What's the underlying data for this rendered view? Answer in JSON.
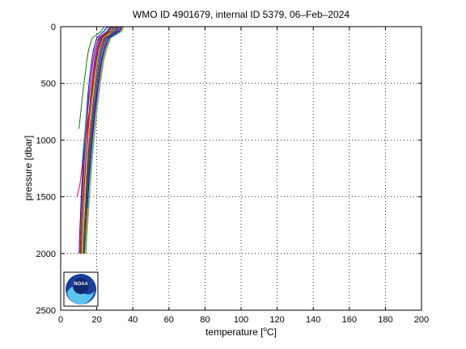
{
  "chart_data": {
    "type": "line",
    "title": "WMO ID 4901679, internal ID 5379, 06–Feb–2024",
    "xlabel_prefix": "temperature [",
    "xlabel_unit_sup": "o",
    "xlabel_suffix": "C]",
    "ylabel": "pressure [dbar]",
    "xlim": [
      0,
      200
    ],
    "ylim": [
      0,
      2500
    ],
    "y_reversed": true,
    "xticks": [
      0,
      20,
      40,
      60,
      80,
      100,
      120,
      140,
      160,
      180,
      200
    ],
    "yticks": [
      0,
      500,
      1000,
      1500,
      2000,
      2500
    ],
    "grid": true,
    "grid_style": "dotted",
    "legend": "none",
    "logo": {
      "name": "noaa-logo",
      "text": "NOAA"
    },
    "profile_pressures": [
      0,
      40,
      100,
      200,
      300,
      400,
      500,
      600,
      700,
      800,
      900,
      1000,
      1100,
      1200,
      1300,
      1400,
      1500,
      1600,
      1700,
      1800,
      1900,
      2000
    ],
    "series": [
      {
        "color": "#0000ff",
        "max_p": 2000,
        "values": [
          30.5,
          29.0,
          23.0,
          20.8,
          19.8,
          19.0,
          18.3,
          17.7,
          17.1,
          16.6,
          16.1,
          15.7,
          15.3,
          14.9,
          14.6,
          14.3,
          14.0,
          13.7,
          13.4,
          13.2,
          13.0,
          12.8
        ]
      },
      {
        "color": "#008000",
        "max_p": 2000,
        "values": [
          28.0,
          26.5,
          21.5,
          19.0,
          18.0,
          17.2,
          16.5,
          15.9,
          15.3,
          14.8,
          14.3,
          13.9,
          13.5,
          13.1,
          12.8,
          12.4,
          12.1,
          11.8,
          11.5,
          11.3,
          11.0,
          10.8
        ]
      },
      {
        "color": "#ff0000",
        "max_p": 1500,
        "values": [
          32.0,
          31.0,
          24.0,
          21.5,
          20.2,
          19.2,
          18.2,
          17.2,
          16.3,
          15.4,
          14.6,
          13.8,
          13.0,
          12.2,
          11.4,
          10.6,
          9.0
        ]
      },
      {
        "color": "#00bfbf",
        "max_p": 2000,
        "values": [
          33.0,
          32.0,
          26.0,
          23.5,
          22.2,
          21.3,
          20.5,
          19.8,
          19.1,
          18.5,
          17.9,
          17.3,
          16.8,
          16.3,
          15.8,
          15.4,
          15.0,
          14.6,
          14.2,
          13.9,
          13.5,
          13.2
        ]
      },
      {
        "color": "#bf00bf",
        "max_p": 2000,
        "values": [
          29.0,
          28.0,
          22.5,
          20.5,
          19.4,
          18.6,
          17.8,
          17.1,
          16.5,
          15.9,
          15.4,
          14.9,
          14.4,
          14.0,
          13.6,
          13.2,
          12.9,
          12.5,
          12.2,
          11.9,
          11.6,
          11.3
        ]
      },
      {
        "color": "#bfbf00",
        "max_p": 2000,
        "values": [
          35.0,
          34.0,
          28.0,
          25.5,
          24.0,
          23.0,
          22.1,
          21.3,
          20.5,
          19.8,
          19.2,
          18.6,
          18.0,
          17.5,
          17.0,
          16.5,
          16.1,
          15.6,
          15.2,
          14.8,
          14.4,
          14.1
        ]
      },
      {
        "color": "#404040",
        "max_p": 2000,
        "values": [
          31.0,
          30.0,
          24.5,
          22.0,
          20.8,
          19.9,
          19.1,
          18.4,
          17.8,
          17.2,
          16.6,
          16.1,
          15.6,
          15.2,
          14.8,
          14.4,
          14.0,
          13.7,
          13.3,
          13.0,
          12.7,
          12.4
        ]
      },
      {
        "color": "#0000ff",
        "max_p": 2000,
        "values": [
          26.0,
          24.0,
          20.0,
          18.2,
          17.2,
          16.4,
          15.7,
          15.1,
          14.6,
          14.1,
          13.6,
          13.2,
          12.8,
          12.4,
          12.1,
          11.7,
          11.4,
          11.1,
          10.9,
          10.6,
          10.4,
          10.2
        ]
      },
      {
        "color": "#008000",
        "max_p": 900,
        "values": [
          24.0,
          22.5,
          17.5,
          15.5,
          14.5,
          13.7,
          12.9,
          12.2,
          11.5,
          10.8,
          10.2
        ]
      },
      {
        "color": "#ff0000",
        "max_p": 2000,
        "values": [
          34.0,
          33.0,
          27.0,
          24.5,
          23.0,
          22.0,
          21.1,
          20.3,
          19.5,
          18.8,
          18.2,
          17.6,
          17.0,
          16.5,
          16.0,
          15.5,
          15.1,
          14.7,
          14.3,
          13.9,
          13.5,
          13.2
        ]
      },
      {
        "color": "#00bfbf",
        "max_p": 1200,
        "values": [
          27.0,
          25.5,
          21.0,
          19.2,
          18.1,
          17.2,
          16.4,
          15.6,
          14.9,
          14.2,
          13.6,
          13.0,
          12.4,
          11.9
        ]
      },
      {
        "color": "#bf00bf",
        "max_p": 2000,
        "values": [
          32.5,
          31.5,
          25.5,
          23.0,
          21.8,
          20.9,
          20.1,
          19.4,
          18.7,
          18.1,
          17.5,
          16.9,
          16.4,
          15.9,
          15.5,
          15.1,
          14.7,
          14.3,
          13.9,
          13.6,
          13.3,
          13.0
        ]
      },
      {
        "color": "#bfbf00",
        "max_p": 2000,
        "values": [
          30.0,
          28.5,
          23.5,
          21.3,
          20.2,
          19.3,
          18.5,
          17.8,
          17.2,
          16.6,
          16.0,
          15.5,
          15.0,
          14.6,
          14.2,
          13.8,
          13.4,
          13.1,
          12.8,
          12.5,
          12.2,
          11.9
        ]
      },
      {
        "color": "#404040",
        "max_p": 2000,
        "values": [
          29.5,
          28.0,
          22.0,
          19.8,
          18.8,
          18.0,
          17.3,
          16.7,
          16.1,
          15.6,
          15.1,
          14.6,
          14.2,
          13.8,
          13.4,
          13.0,
          12.7,
          12.4,
          12.1,
          11.8,
          11.5,
          11.2
        ]
      },
      {
        "color": "#0000ff",
        "max_p": 1700,
        "values": [
          33.5,
          32.5,
          26.5,
          24.0,
          22.6,
          21.6,
          20.8,
          20.0,
          19.3,
          18.6,
          18.0,
          17.4,
          16.9,
          16.4,
          15.9,
          15.5,
          15.1,
          14.7
        ]
      },
      {
        "color": "#008000",
        "max_p": 2000,
        "values": [
          31.5,
          30.5,
          25.0,
          22.6,
          21.4,
          20.5,
          19.7,
          19.0,
          18.3,
          17.7,
          17.1,
          16.6,
          16.1,
          15.6,
          15.2,
          14.8,
          14.4,
          14.0,
          13.7,
          13.4,
          13.1,
          12.8
        ]
      },
      {
        "color": "#ff0000",
        "max_p": 2000,
        "values": [
          28.5,
          27.0,
          22.0,
          20.0,
          19.0,
          18.2,
          17.5,
          16.9,
          16.3,
          15.7,
          15.2,
          14.7,
          14.3,
          13.9,
          13.5,
          13.1,
          12.8,
          12.4,
          12.1,
          11.8,
          11.5,
          11.3
        ]
      },
      {
        "color": "#bf00bf",
        "max_p": 2000,
        "values": [
          27.5,
          26.0,
          21.0,
          19.0,
          17.9,
          17.1,
          16.4,
          15.7,
          15.1,
          14.6,
          14.1,
          13.6,
          13.2,
          12.8,
          12.4,
          12.0,
          11.7,
          11.4,
          11.1,
          10.8,
          10.5,
          10.3
        ]
      },
      {
        "color": "#00bfbf",
        "max_p": 2000,
        "values": [
          34.5,
          33.5,
          27.5,
          25.0,
          23.6,
          22.6,
          21.7,
          20.9,
          20.1,
          19.4,
          18.8,
          18.2,
          17.6,
          17.1,
          16.6,
          16.1,
          15.7,
          15.3,
          14.9,
          14.5,
          14.1,
          13.8
        ]
      }
    ]
  }
}
